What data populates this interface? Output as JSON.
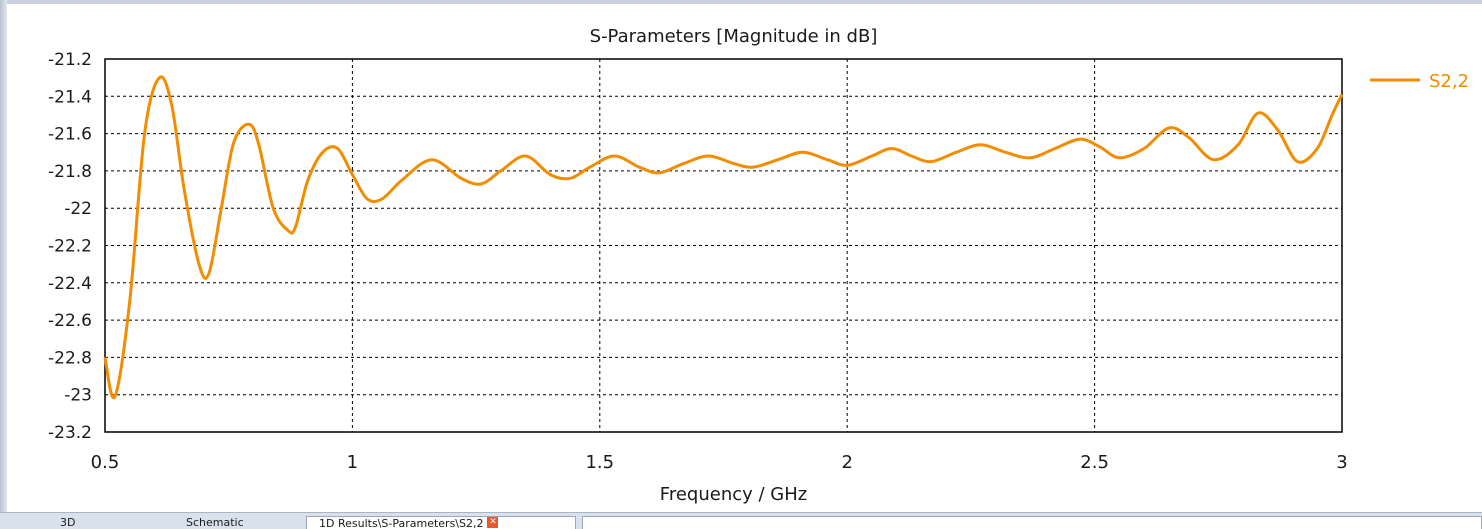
{
  "chart_data": {
    "type": "line",
    "title": "S-Parameters [Magnitude in dB]",
    "xlabel": "Frequency / GHz",
    "ylabel": "",
    "xlim": [
      0.5,
      3
    ],
    "ylim": [
      -23.2,
      -21.2
    ],
    "xticks": [
      0.5,
      1,
      1.5,
      2,
      2.5,
      3
    ],
    "xtick_labels": [
      "0.5",
      "1",
      "1.5",
      "2",
      "2.5",
      "3"
    ],
    "yticks": [
      -21.2,
      -21.4,
      -21.6,
      -21.8,
      -22,
      -22.2,
      -22.4,
      -22.6,
      -22.8,
      -23,
      -23.2
    ],
    "ytick_labels": [
      "-21.2",
      "-21.4",
      "-21.6",
      "-21.8",
      "-22",
      "-22.2",
      "-22.4",
      "-22.6",
      "-22.8",
      "-23",
      "-23.2"
    ],
    "grid": true,
    "legend_position": "right",
    "series": [
      {
        "name": "S2,2",
        "color": "#f28c00",
        "x": [
          0.5,
          0.52,
          0.55,
          0.58,
          0.61,
          0.635,
          0.66,
          0.69,
          0.71,
          0.735,
          0.76,
          0.79,
          0.81,
          0.84,
          0.87,
          0.885,
          0.91,
          0.94,
          0.97,
          1.0,
          1.03,
          1.06,
          1.1,
          1.16,
          1.22,
          1.26,
          1.3,
          1.35,
          1.4,
          1.44,
          1.48,
          1.53,
          1.58,
          1.62,
          1.67,
          1.72,
          1.77,
          1.81,
          1.86,
          1.91,
          1.96,
          2.0,
          2.05,
          2.09,
          2.13,
          2.17,
          2.22,
          2.27,
          2.32,
          2.37,
          2.42,
          2.47,
          2.51,
          2.55,
          2.6,
          2.65,
          2.69,
          2.74,
          2.79,
          2.83,
          2.87,
          2.91,
          2.95,
          2.98,
          3.0
        ],
        "y": [
          -22.8,
          -23.01,
          -22.5,
          -21.6,
          -21.3,
          -21.45,
          -21.9,
          -22.3,
          -22.35,
          -22.0,
          -21.65,
          -21.55,
          -21.65,
          -22.0,
          -22.12,
          -22.1,
          -21.85,
          -21.7,
          -21.68,
          -21.82,
          -21.95,
          -21.95,
          -21.85,
          -21.74,
          -21.84,
          -21.87,
          -21.8,
          -21.72,
          -21.82,
          -21.84,
          -21.78,
          -21.72,
          -21.78,
          -21.81,
          -21.76,
          -21.72,
          -21.76,
          -21.78,
          -21.74,
          -21.7,
          -21.74,
          -21.77,
          -21.72,
          -21.68,
          -21.72,
          -21.75,
          -21.7,
          -21.66,
          -21.7,
          -21.73,
          -21.68,
          -21.63,
          -21.67,
          -21.73,
          -21.68,
          -21.57,
          -21.62,
          -21.74,
          -21.66,
          -21.49,
          -21.58,
          -21.75,
          -21.68,
          -21.5,
          -21.39
        ]
      }
    ]
  },
  "tabs": {
    "tab_3d": "3D",
    "tab_schematic": "Schematic",
    "tab_results": "1D Results\\S-Parameters\\S2,2",
    "close_glyph": "✕"
  }
}
